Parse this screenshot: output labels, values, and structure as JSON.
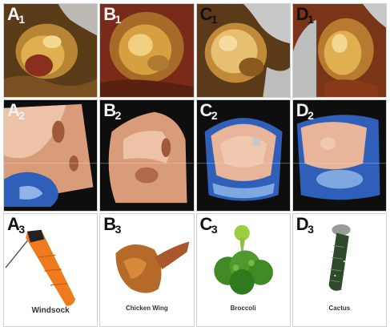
{
  "panels": [
    {
      "id": "A1",
      "letter": "A",
      "index": "1"
    },
    {
      "id": "B1",
      "letter": "B",
      "index": "1"
    },
    {
      "id": "C1",
      "letter": "C",
      "index": "1"
    },
    {
      "id": "D1",
      "letter": "D",
      "index": "1"
    },
    {
      "id": "A2",
      "letter": "A",
      "index": "2"
    },
    {
      "id": "B2",
      "letter": "B",
      "index": "2"
    },
    {
      "id": "C2",
      "letter": "C",
      "index": "2"
    },
    {
      "id": "D2",
      "letter": "D",
      "index": "2"
    },
    {
      "id": "A3",
      "letter": "A",
      "index": "3",
      "caption": "Windsock"
    },
    {
      "id": "B3",
      "letter": "B",
      "index": "3",
      "caption": "Chicken Wing"
    },
    {
      "id": "C3",
      "letter": "C",
      "index": "3",
      "caption": "Broccoli"
    },
    {
      "id": "D3",
      "letter": "D",
      "index": "3",
      "caption": "Cactus"
    }
  ],
  "colors": {
    "ct_brown": "#6b4a1f",
    "ct_gold": "#e0b050",
    "ct_bone": "#c8c8c8",
    "echo_flesh": "#e8b49a",
    "echo_blue": "#2f5fb8",
    "echo_bg": "#0e0e0e",
    "windsock_orange": "#f07a1e",
    "broccoli_green": "#4f9a2c",
    "cactus_green": "#2f4a2a"
  }
}
